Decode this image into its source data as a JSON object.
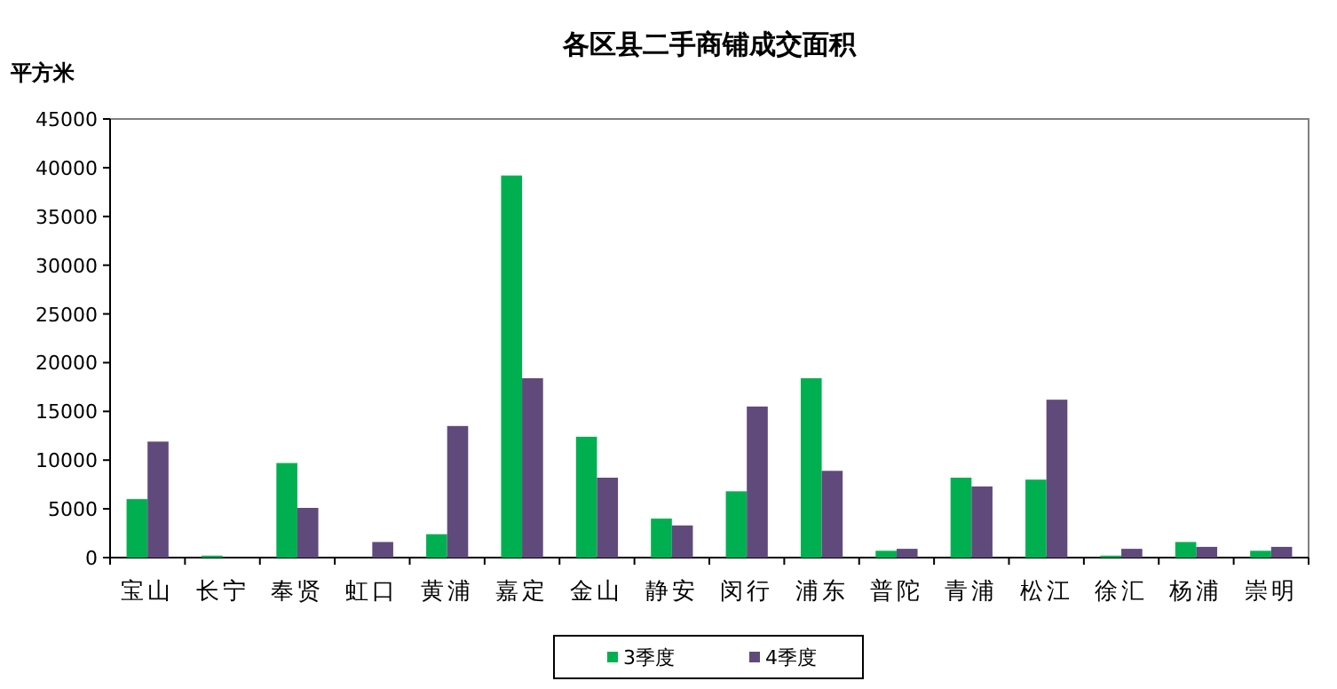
{
  "chart_data": {
    "type": "bar",
    "title": "各区县二手商铺成交面积",
    "ylabel": "平方米",
    "categories": [
      "宝山",
      "长宁",
      "奉贤",
      "虹口",
      "黄浦",
      "嘉定",
      "金山",
      "静安",
      "闵行",
      "浦东",
      "普陀",
      "青浦",
      "松江",
      "徐汇",
      "杨浦",
      "崇明"
    ],
    "series": [
      {
        "name": "3季度",
        "color": "#00b050",
        "values": [
          6000,
          200,
          9700,
          0,
          2400,
          39200,
          12400,
          4000,
          6800,
          18400,
          700,
          8200,
          8000,
          200,
          1600,
          700
        ]
      },
      {
        "name": "4季度",
        "color": "#604a7b",
        "values": [
          11900,
          0,
          5100,
          1600,
          13500,
          18400,
          8200,
          3300,
          15500,
          8900,
          900,
          7300,
          16200,
          900,
          1100,
          1100
        ]
      }
    ],
    "ylim": [
      0,
      45000
    ],
    "yticks": [
      0,
      5000,
      10000,
      15000,
      20000,
      25000,
      30000,
      35000,
      40000,
      45000
    ],
    "grid": false,
    "legend": "bottom"
  }
}
